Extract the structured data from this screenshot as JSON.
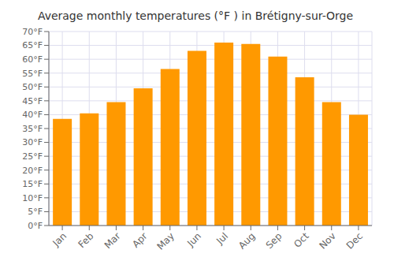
{
  "chart_data": {
    "type": "bar",
    "title": "Average monthly temperatures (°F ) in Brétigny-sur-Orge",
    "categories": [
      "Jan",
      "Feb",
      "Mar",
      "Apr",
      "May",
      "Jun",
      "Jul",
      "Aug",
      "Sep",
      "Oct",
      "Nov",
      "Dec"
    ],
    "values": [
      38.5,
      40.5,
      44.5,
      49.5,
      56.5,
      63.0,
      66.0,
      65.5,
      61.0,
      53.5,
      44.5,
      40.0
    ],
    "color": "#FF9900",
    "ylim": [
      0,
      70
    ],
    "yticks": [
      {
        "value": 0,
        "label": "0°F"
      },
      {
        "value": 5,
        "label": "5°F"
      },
      {
        "value": 10,
        "label": "10°F"
      },
      {
        "value": 15,
        "label": "15°F"
      },
      {
        "value": 20,
        "label": "20°F"
      },
      {
        "value": 25,
        "label": "25°F"
      },
      {
        "value": 30,
        "label": "30°F"
      },
      {
        "value": 35,
        "label": "35°F"
      },
      {
        "value": 40,
        "label": "40°F"
      },
      {
        "value": 45,
        "label": "45°F"
      },
      {
        "value": 50,
        "label": "50°F"
      },
      {
        "value": 55,
        "label": "55°F"
      },
      {
        "value": 60,
        "label": "60°F"
      },
      {
        "value": 65,
        "label": "65°F"
      },
      {
        "value": 70,
        "label": "70°F"
      }
    ],
    "grid": true
  }
}
